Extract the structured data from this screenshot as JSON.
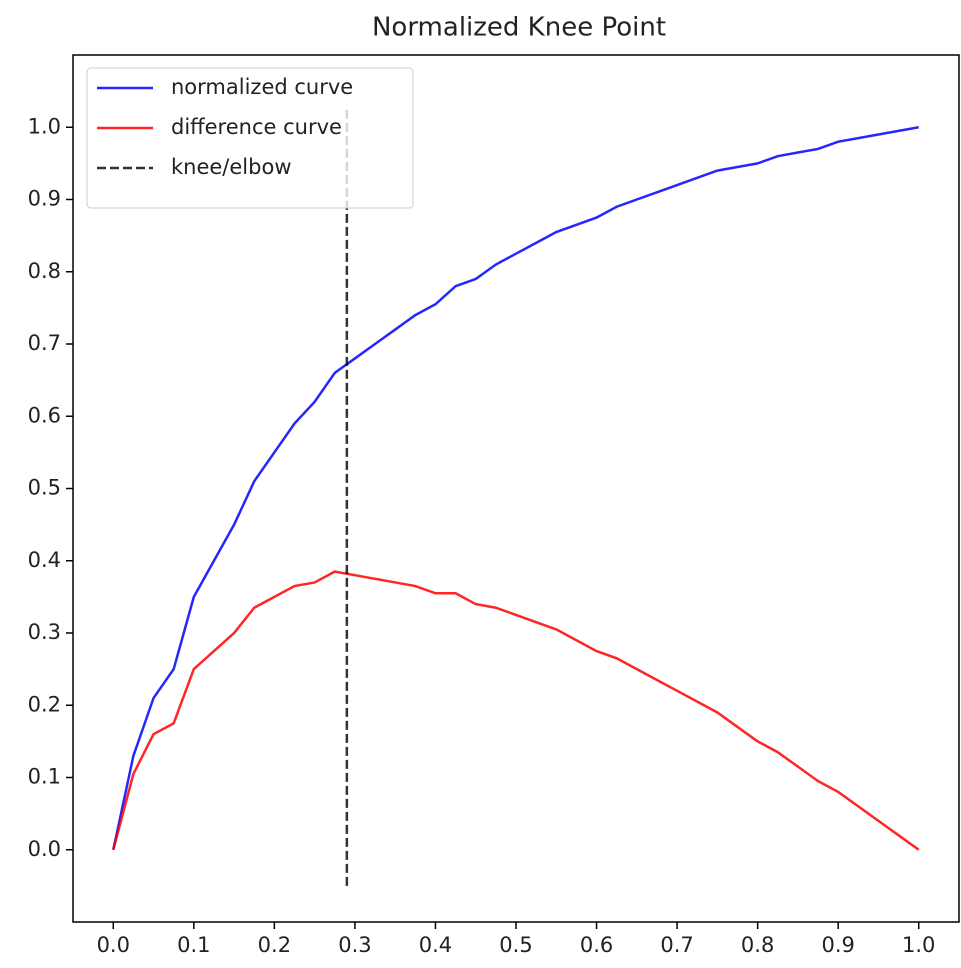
{
  "chart_data": {
    "type": "line",
    "title": "Normalized Knee Point",
    "x": [
      0,
      0.025,
      0.05,
      0.075,
      0.1,
      0.125,
      0.15,
      0.175,
      0.2,
      0.225,
      0.25,
      0.275,
      0.3,
      0.325,
      0.35,
      0.375,
      0.4,
      0.425,
      0.45,
      0.475,
      0.5,
      0.525,
      0.55,
      0.575,
      0.6,
      0.625,
      0.65,
      0.675,
      0.7,
      0.725,
      0.75,
      0.775,
      0.8,
      0.825,
      0.85,
      0.875,
      0.9,
      0.925,
      0.95,
      0.975,
      1.0
    ],
    "series": [
      {
        "name": "normalized curve",
        "color": "#0000ff",
        "values": [
          0,
          0.13,
          0.21,
          0.25,
          0.35,
          0.4,
          0.45,
          0.51,
          0.55,
          0.59,
          0.62,
          0.66,
          0.68,
          0.7,
          0.72,
          0.74,
          0.755,
          0.78,
          0.79,
          0.81,
          0.825,
          0.84,
          0.855,
          0.865,
          0.875,
          0.89,
          0.9,
          0.91,
          0.92,
          0.93,
          0.94,
          0.945,
          0.95,
          0.96,
          0.965,
          0.97,
          0.98,
          0.985,
          0.99,
          0.995,
          1.0
        ]
      },
      {
        "name": "difference curve",
        "color": "#ff0000",
        "values": [
          0,
          0.105,
          0.16,
          0.175,
          0.25,
          0.275,
          0.3,
          0.335,
          0.35,
          0.365,
          0.37,
          0.385,
          0.38,
          0.375,
          0.37,
          0.365,
          0.355,
          0.355,
          0.34,
          0.335,
          0.325,
          0.315,
          0.305,
          0.29,
          0.275,
          0.265,
          0.25,
          0.235,
          0.22,
          0.205,
          0.19,
          0.17,
          0.15,
          0.135,
          0.115,
          0.095,
          0.08,
          0.06,
          0.04,
          0.02,
          0
        ]
      }
    ],
    "vlines": [
      {
        "name": "knee/elbow",
        "x": 0.29,
        "ymin": -0.05,
        "ymax": 1.03,
        "color": "#000000",
        "style": "dashed"
      }
    ],
    "xlim": [
      -0.05,
      1.05
    ],
    "ylim": [
      -0.1,
      1.1
    ],
    "xticks": [
      {
        "value": 0,
        "label": "0.0"
      },
      {
        "value": 0.1,
        "label": "0.1"
      },
      {
        "value": 0.2,
        "label": "0.2"
      },
      {
        "value": 0.3,
        "label": "0.3"
      },
      {
        "value": 0.4,
        "label": "0.4"
      },
      {
        "value": 0.5,
        "label": "0.5"
      },
      {
        "value": 0.6,
        "label": "0.6"
      },
      {
        "value": 0.7,
        "label": "0.7"
      },
      {
        "value": 0.8,
        "label": "0.8"
      },
      {
        "value": 0.9,
        "label": "0.9"
      },
      {
        "value": 1.0,
        "label": "1.0"
      }
    ],
    "yticks": [
      {
        "value": 0,
        "label": "0.0"
      },
      {
        "value": 0.1,
        "label": "0.1"
      },
      {
        "value": 0.2,
        "label": "0.2"
      },
      {
        "value": 0.3,
        "label": "0.3"
      },
      {
        "value": 0.4,
        "label": "0.4"
      },
      {
        "value": 0.5,
        "label": "0.5"
      },
      {
        "value": 0.6,
        "label": "0.6"
      },
      {
        "value": 0.7,
        "label": "0.7"
      },
      {
        "value": 0.8,
        "label": "0.8"
      },
      {
        "value": 0.9,
        "label": "0.9"
      },
      {
        "value": 1.0,
        "label": "1.0"
      }
    ],
    "grid": false,
    "legend": "upper left"
  }
}
